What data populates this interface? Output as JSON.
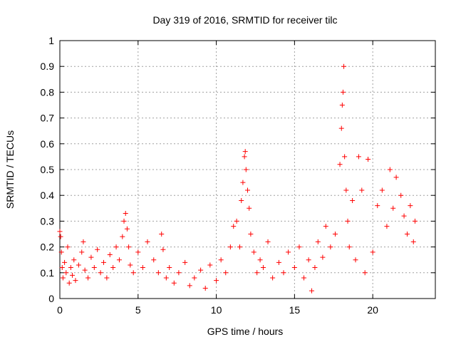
{
  "chart_data": {
    "type": "scatter",
    "title": "Day 319 of 2016, SRMTID for receiver tilc",
    "xlabel": "GPS time / hours",
    "ylabel": "SRMTID / TECUs",
    "xlim": [
      0,
      24
    ],
    "ylim": [
      0,
      1
    ],
    "xticks": [
      0,
      5,
      10,
      15,
      20
    ],
    "xtick_labels": [
      "0",
      "5",
      "10",
      "15",
      "20"
    ],
    "yticks": [
      0,
      0.1,
      0.2,
      0.3,
      0.4,
      0.5,
      0.6,
      0.7,
      0.8,
      0.9,
      1
    ],
    "ytick_labels": [
      "0",
      "0.1",
      "0.2",
      "0.3",
      "0.4",
      "0.5",
      "0.6",
      "0.7",
      "0.8",
      "0.9",
      "1"
    ],
    "grid": true,
    "marker": "plus",
    "color": "#ff0000",
    "series": [
      {
        "name": "SRMTID",
        "x": [
          0.0,
          0.05,
          0.1,
          0.15,
          0.2,
          0.3,
          0.4,
          0.5,
          0.6,
          0.7,
          0.8,
          0.9,
          1.0,
          1.2,
          1.4,
          1.5,
          1.6,
          1.8,
          2.0,
          2.2,
          2.4,
          2.6,
          2.8,
          3.0,
          3.2,
          3.4,
          3.6,
          3.8,
          4.0,
          4.1,
          4.2,
          4.3,
          4.4,
          4.5,
          4.7,
          5.0,
          5.3,
          5.6,
          6.0,
          6.3,
          6.5,
          6.6,
          6.8,
          7.0,
          7.3,
          7.6,
          8.0,
          8.3,
          8.6,
          9.0,
          9.3,
          9.6,
          10.0,
          10.3,
          10.6,
          10.9,
          11.1,
          11.3,
          11.5,
          11.6,
          11.7,
          11.8,
          11.85,
          11.9,
          12.0,
          12.1,
          12.2,
          12.4,
          12.6,
          12.8,
          13.0,
          13.3,
          13.6,
          14.0,
          14.3,
          14.6,
          15.0,
          15.3,
          15.6,
          15.9,
          16.1,
          16.3,
          16.5,
          16.8,
          17.0,
          17.3,
          17.6,
          17.9,
          18.0,
          18.05,
          18.1,
          18.15,
          18.2,
          18.3,
          18.4,
          18.5,
          18.7,
          18.9,
          19.1,
          19.3,
          19.5,
          19.7,
          20.0,
          20.3,
          20.6,
          20.9,
          21.1,
          21.3,
          21.5,
          21.8,
          22.0,
          22.2,
          22.4,
          22.6,
          22.7
        ],
        "y": [
          0.26,
          0.24,
          0.18,
          0.12,
          0.08,
          0.14,
          0.1,
          0.2,
          0.06,
          0.12,
          0.09,
          0.15,
          0.07,
          0.13,
          0.18,
          0.22,
          0.11,
          0.08,
          0.16,
          0.12,
          0.19,
          0.1,
          0.14,
          0.08,
          0.17,
          0.12,
          0.2,
          0.15,
          0.24,
          0.3,
          0.33,
          0.27,
          0.2,
          0.13,
          0.1,
          0.18,
          0.12,
          0.22,
          0.15,
          0.1,
          0.25,
          0.19,
          0.08,
          0.12,
          0.06,
          0.1,
          0.14,
          0.05,
          0.08,
          0.11,
          0.04,
          0.13,
          0.07,
          0.15,
          0.1,
          0.2,
          0.28,
          0.3,
          0.2,
          0.38,
          0.45,
          0.55,
          0.57,
          0.5,
          0.42,
          0.35,
          0.25,
          0.18,
          0.1,
          0.15,
          0.12,
          0.22,
          0.08,
          0.14,
          0.1,
          0.18,
          0.12,
          0.2,
          0.08,
          0.15,
          0.03,
          0.12,
          0.22,
          0.16,
          0.28,
          0.2,
          0.25,
          0.52,
          0.66,
          0.75,
          0.8,
          0.9,
          0.55,
          0.42,
          0.3,
          0.2,
          0.38,
          0.15,
          0.55,
          0.42,
          0.1,
          0.54,
          0.18,
          0.36,
          0.42,
          0.28,
          0.5,
          0.35,
          0.47,
          0.4,
          0.32,
          0.25,
          0.36,
          0.22,
          0.3
        ]
      }
    ]
  }
}
